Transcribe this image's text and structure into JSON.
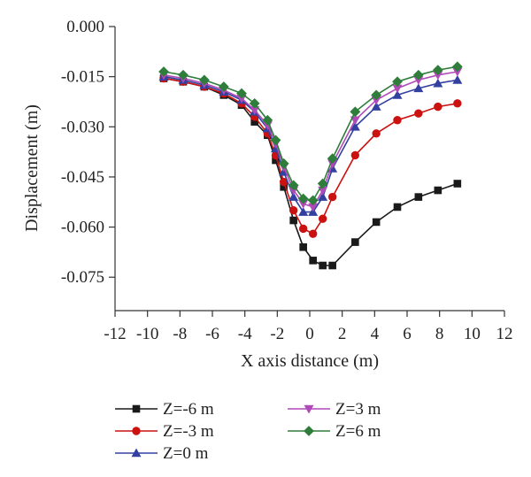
{
  "chart_data": {
    "type": "line",
    "title": "",
    "xlabel": "X axis distance (m)",
    "ylabel": "Displacement (m)",
    "xlim": [
      -12,
      12
    ],
    "ylim": [
      -0.085,
      0.0
    ],
    "x_ticks": [
      -12,
      -10,
      -8,
      -6,
      -4,
      -2,
      0,
      2,
      4,
      6,
      8,
      10,
      12
    ],
    "x_tick_labels": [
      "-12",
      "-10",
      "-8",
      "-6",
      "-4",
      "-2",
      "0",
      "2",
      "4",
      "6",
      "8",
      "10",
      "12"
    ],
    "y_ticks": [
      0.0,
      -0.015,
      -0.03,
      -0.045,
      -0.06,
      -0.075
    ],
    "y_tick_labels": [
      "0.000",
      "-0.015",
      "-0.030",
      "-0.045",
      "-0.060",
      "-0.075"
    ],
    "grid": false,
    "legend_position": "bottom",
    "x": [
      -9.0,
      -7.8,
      -6.5,
      -5.3,
      -4.2,
      -3.4,
      -2.6,
      -2.1,
      -1.6,
      -1.0,
      -0.4,
      0.2,
      0.8,
      1.4,
      2.8,
      4.1,
      5.4,
      6.7,
      7.9,
      9.1
    ],
    "series": [
      {
        "name": "Z=-6 m",
        "color": "#1a1a1a",
        "marker": "square",
        "values": [
          -0.0155,
          -0.0165,
          -0.018,
          -0.0205,
          -0.0235,
          -0.0285,
          -0.0325,
          -0.04,
          -0.048,
          -0.058,
          -0.066,
          -0.07,
          -0.0715,
          -0.0715,
          -0.0645,
          -0.0585,
          -0.054,
          -0.051,
          -0.049,
          -0.047
        ]
      },
      {
        "name": "Z=-3 m",
        "color": "#cc1111",
        "marker": "circle",
        "values": [
          -0.0155,
          -0.0165,
          -0.018,
          -0.02,
          -0.023,
          -0.027,
          -0.032,
          -0.0385,
          -0.0465,
          -0.055,
          -0.0605,
          -0.062,
          -0.0575,
          -0.051,
          -0.0385,
          -0.032,
          -0.028,
          -0.026,
          -0.024,
          -0.023
        ]
      },
      {
        "name": "Z=0 m",
        "color": "#3340a0",
        "marker": "triangle-up",
        "values": [
          -0.015,
          -0.016,
          -0.0175,
          -0.0195,
          -0.022,
          -0.0255,
          -0.0305,
          -0.0365,
          -0.0435,
          -0.051,
          -0.0555,
          -0.0555,
          -0.051,
          -0.0425,
          -0.03,
          -0.024,
          -0.0205,
          -0.0185,
          -0.017,
          -0.016
        ]
      },
      {
        "name": "Z=3 m",
        "color": "#b04ab8",
        "marker": "triangle-down",
        "values": [
          -0.0145,
          -0.0155,
          -0.017,
          -0.019,
          -0.0215,
          -0.025,
          -0.0295,
          -0.035,
          -0.042,
          -0.049,
          -0.053,
          -0.054,
          -0.049,
          -0.041,
          -0.028,
          -0.022,
          -0.0185,
          -0.016,
          -0.0145,
          -0.0135
        ]
      },
      {
        "name": "Z=6 m",
        "color": "#2e7d3a",
        "marker": "diamond",
        "values": [
          -0.0135,
          -0.0145,
          -0.016,
          -0.018,
          -0.02,
          -0.023,
          -0.028,
          -0.034,
          -0.041,
          -0.0475,
          -0.0515,
          -0.052,
          -0.047,
          -0.0395,
          -0.0255,
          -0.0205,
          -0.0165,
          -0.0145,
          -0.013,
          -0.012
        ]
      }
    ]
  }
}
